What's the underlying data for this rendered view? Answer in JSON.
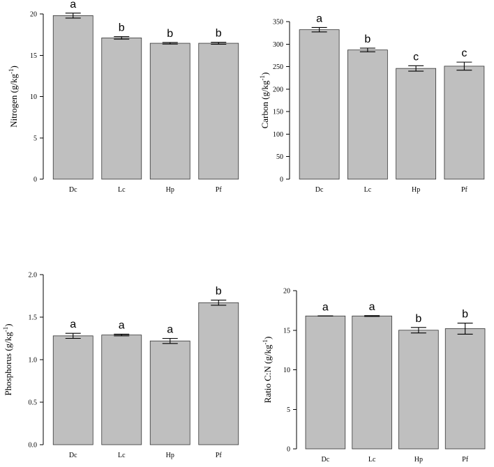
{
  "chart_data": [
    {
      "type": "bar",
      "ylabel": "Nitrogen (g/kg-1)",
      "ylabel_main": "Nitrogen (g/kg",
      "ylabel_sup": "-1",
      "ylabel_end": ")",
      "categories": [
        "Dc",
        "Lc",
        "Hp",
        "Pf"
      ],
      "values": [
        19.8,
        17.1,
        16.45,
        16.45
      ],
      "errors": [
        0.3,
        0.15,
        0.1,
        0.12
      ],
      "letters": [
        "a",
        "b",
        "b",
        "b"
      ],
      "ylim": [
        0,
        20
      ],
      "yticks": [
        0,
        5,
        10,
        15,
        20
      ],
      "ytick_labels": [
        "0",
        "5",
        "10",
        "15",
        "20"
      ],
      "bar_color": "#bfbfbf"
    },
    {
      "type": "bar",
      "ylabel": "Carbon (g/kg-1)",
      "ylabel_main": "Carbon (g/kg",
      "ylabel_sup": "-1",
      "ylabel_end": ")",
      "categories": [
        "Dc",
        "Lc",
        "Hp",
        "Pf"
      ],
      "values": [
        332,
        287,
        246,
        251
      ],
      "errors": [
        5,
        4,
        6,
        9
      ],
      "letters": [
        "a",
        "b",
        "c",
        "c"
      ],
      "ylim": [
        0,
        350
      ],
      "yticks": [
        0,
        50,
        100,
        150,
        200,
        250,
        300,
        350
      ],
      "ytick_labels": [
        "0",
        "50",
        "100",
        "150",
        "200",
        "250",
        "300",
        "350"
      ],
      "bar_color": "#bfbfbf"
    },
    {
      "type": "bar",
      "ylabel": "Phosphorus (g/kg-1)",
      "ylabel_main": "Phosphorus (g/kg",
      "ylabel_sup": "-1",
      "ylabel_end": ")",
      "categories": [
        "Dc",
        "Lc",
        "Hp",
        "Pf"
      ],
      "values": [
        1.28,
        1.29,
        1.22,
        1.67
      ],
      "errors": [
        0.03,
        0.01,
        0.03,
        0.03
      ],
      "letters": [
        "a",
        "a",
        "a",
        "b"
      ],
      "ylim": [
        0,
        2.0
      ],
      "yticks": [
        0,
        0.5,
        1.0,
        1.5,
        2.0
      ],
      "ytick_labels": [
        "0.0",
        "0.5",
        "1.0",
        "1.5",
        "2.0"
      ],
      "bar_color": "#bfbfbf"
    },
    {
      "type": "bar",
      "ylabel": "Ratio C:N (g/kg-1)",
      "ylabel_main": "Ratio C:N (g/kg",
      "ylabel_sup": "-1",
      "ylabel_end": ")",
      "categories": [
        "Dc",
        "Lc",
        "Hp",
        "Pf"
      ],
      "values": [
        16.8,
        16.8,
        15.0,
        15.2
      ],
      "errors": [
        0.0,
        0.05,
        0.35,
        0.7
      ],
      "letters": [
        "a",
        "a",
        "b",
        "b"
      ],
      "ylim": [
        0,
        20
      ],
      "yticks": [
        0,
        5,
        10,
        15,
        20
      ],
      "ytick_labels": [
        "0",
        "5",
        "10",
        "15",
        "20"
      ],
      "bar_color": "#bfbfbf"
    }
  ]
}
